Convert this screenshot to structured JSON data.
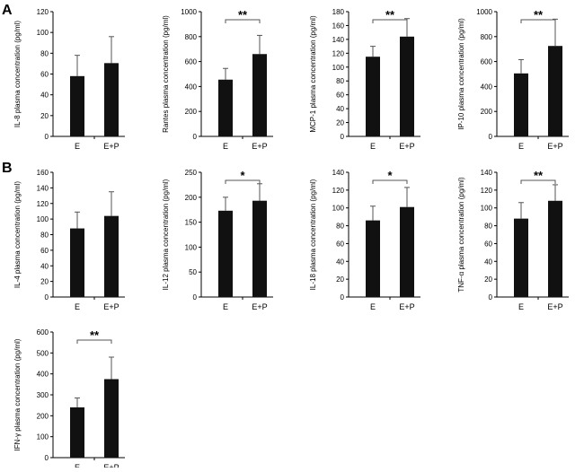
{
  "panel_labels": [
    "A",
    "B"
  ],
  "chart_data": [
    {
      "type": "bar",
      "panel": "A",
      "ylabel": "IL-8 plasma concentration (pg/ml)",
      "categories": [
        "E",
        "E+P"
      ],
      "values": [
        58,
        70.5
      ],
      "errors": [
        20,
        25.5
      ],
      "ylim": [
        0,
        120
      ],
      "yticks": [
        0,
        20,
        40,
        60,
        80,
        100,
        120
      ],
      "significance": ""
    },
    {
      "type": "bar",
      "panel": "A",
      "ylabel": "Rantes plasma concentration (pg/ml)",
      "categories": [
        "E",
        "E+P"
      ],
      "values": [
        455,
        660
      ],
      "errors": [
        90,
        150
      ],
      "ylim": [
        0,
        1000
      ],
      "yticks": [
        0,
        200,
        400,
        600,
        800,
        1000
      ],
      "significance": "**"
    },
    {
      "type": "bar",
      "panel": "A",
      "ylabel": "MCP-1 plasma concentration (pg/ml)",
      "categories": [
        "E",
        "E+P"
      ],
      "values": [
        115,
        144
      ],
      "errors": [
        15,
        26
      ],
      "ylim": [
        0,
        180
      ],
      "yticks": [
        0,
        20,
        40,
        60,
        80,
        100,
        120,
        140,
        160,
        180
      ],
      "significance": "**"
    },
    {
      "type": "bar",
      "panel": "A",
      "ylabel": "IP-10 plasma concentration (pg/ml)",
      "categories": [
        "E",
        "E+P"
      ],
      "values": [
        505,
        725
      ],
      "errors": [
        110,
        215
      ],
      "ylim": [
        0,
        1000
      ],
      "yticks": [
        0,
        200,
        400,
        600,
        800,
        1000
      ],
      "significance": "**"
    },
    {
      "type": "bar",
      "panel": "B",
      "ylabel": "IL-4 plasma concentration (pg/ml)",
      "categories": [
        "E",
        "E+P"
      ],
      "values": [
        88,
        104
      ],
      "errors": [
        21,
        31
      ],
      "ylim": [
        0,
        160
      ],
      "yticks": [
        0,
        20,
        40,
        60,
        80,
        100,
        120,
        140,
        160
      ],
      "significance": ""
    },
    {
      "type": "bar",
      "panel": "B",
      "ylabel": "IL-12 plasma concentration (pg/ml)",
      "categories": [
        "E",
        "E+P"
      ],
      "values": [
        173,
        193
      ],
      "errors": [
        27,
        34
      ],
      "ylim": [
        0,
        250
      ],
      "yticks": [
        0,
        50,
        100,
        150,
        200,
        250
      ],
      "significance": "*"
    },
    {
      "type": "bar",
      "panel": "B",
      "ylabel": "IL-18 plasma concentration (pg/ml)",
      "categories": [
        "E",
        "E+P"
      ],
      "values": [
        86,
        101
      ],
      "errors": [
        16,
        22
      ],
      "ylim": [
        0,
        140
      ],
      "yticks": [
        0,
        20,
        40,
        60,
        80,
        100,
        120,
        140
      ],
      "significance": "*"
    },
    {
      "type": "bar",
      "panel": "B",
      "ylabel": "TNF-α  plasma concentration (pg/ml)",
      "categories": [
        "E",
        "E+P"
      ],
      "values": [
        88,
        108
      ],
      "errors": [
        18,
        18
      ],
      "ylim": [
        0,
        140
      ],
      "yticks": [
        0,
        20,
        40,
        60,
        80,
        100,
        120,
        140
      ],
      "significance": "**"
    },
    {
      "type": "bar",
      "panel": "B",
      "ylabel": "IFN-γ  plasma concentration (pg/ml)",
      "categories": [
        "E",
        "E+P"
      ],
      "values": [
        240,
        375
      ],
      "errors": [
        45,
        105
      ],
      "ylim": [
        0,
        600
      ],
      "yticks": [
        0,
        100,
        200,
        300,
        400,
        500,
        600
      ],
      "significance": "**"
    }
  ]
}
